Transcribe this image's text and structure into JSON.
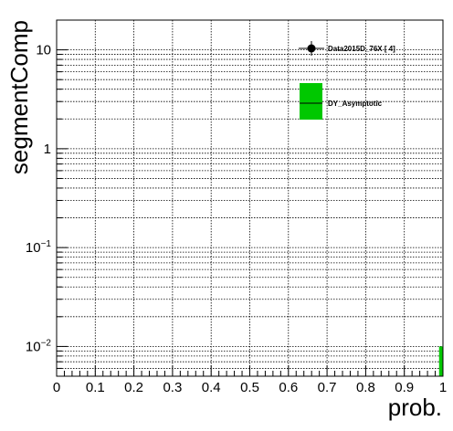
{
  "chart_data": {
    "type": "bar",
    "xlabel": "prob.",
    "ylabel": "segmentComp",
    "xlim": [
      0,
      1
    ],
    "ylim": [
      0.005,
      20
    ],
    "yscale": "log",
    "grid": true,
    "legend_position": "top-right",
    "x_ticks": [
      "0",
      "0.1",
      "0.2",
      "0.3",
      "0.4",
      "0.5",
      "0.6",
      "0.7",
      "0.8",
      "0.9",
      "1"
    ],
    "y_ticks": [
      {
        "value": 10,
        "base": "10",
        "exp": ""
      },
      {
        "value": 1,
        "base": "1",
        "exp": ""
      },
      {
        "value": 0.1,
        "base": "10",
        "exp": "−1"
      },
      {
        "value": 0.01,
        "base": "10",
        "exp": "−2"
      }
    ],
    "series": [
      {
        "name": "Data2015D_76X [ 4]",
        "style": "markers",
        "color": "#000000",
        "points": []
      },
      {
        "name": "DY_Asymptotic",
        "style": "filled-histogram",
        "color": "#00c800",
        "bins": [
          {
            "x_low": 0.99,
            "x_high": 1.0,
            "value": 0.01
          }
        ]
      }
    ]
  }
}
